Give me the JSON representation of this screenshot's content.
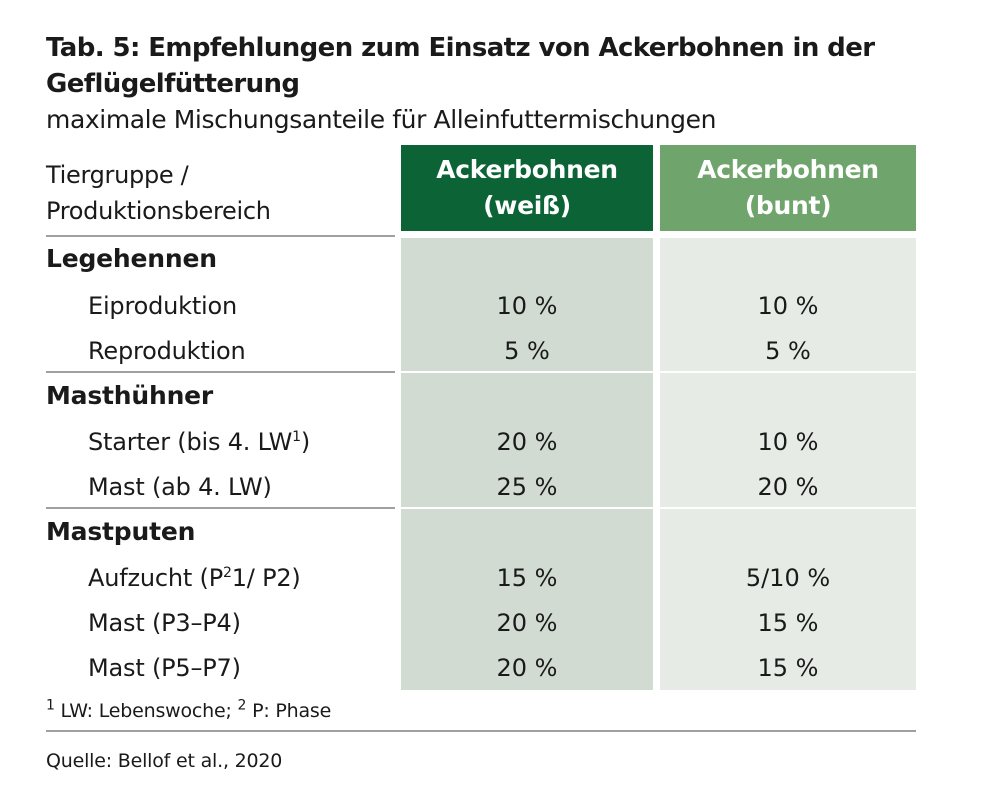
{
  "title": "Tab. 5: Empfehlungen zum Einsatz von Ackerbohnen in der Geflügelfütterung",
  "subtitle": "maximale Mischungsanteile für Alleinfuttermischungen",
  "header": {
    "row_label_line1": "Tiergruppe /",
    "row_label_line2": "Produktionsbereich",
    "col1_line1": "Ackerbohnen",
    "col1_line2": "(weiß)",
    "col2_line1": "Ackerbohnen",
    "col2_line2": "(bunt)"
  },
  "colors": {
    "dark_green": "#0b6336",
    "light_green": "#6fa56c",
    "cell_dark": "#d2dbd2",
    "cell_light": "#e6ebe6"
  },
  "groups": [
    {
      "name": "Legehennen",
      "rows": [
        {
          "label": "Eiproduktion",
          "weiss": "10 %",
          "bunt": "10 %"
        },
        {
          "label": "Reproduktion",
          "weiss": "5 %",
          "bunt": "5 %"
        }
      ]
    },
    {
      "name": "Masthühner",
      "rows": [
        {
          "label": "Starter (bis 4. LW",
          "sup": "1",
          "label_end": ")",
          "weiss": "20 %",
          "bunt": "10 %"
        },
        {
          "label": "Mast (ab 4. LW)",
          "weiss": "25 %",
          "bunt": "20 %"
        }
      ]
    },
    {
      "name": "Mastputen",
      "rows": [
        {
          "label": "Aufzucht (P",
          "sup": "2",
          "label_end": "1/ P2)",
          "weiss": "15 %",
          "bunt": "5/10 %"
        },
        {
          "label": "Mast (P3–P4)",
          "weiss": "20 %",
          "bunt": "15 %"
        },
        {
          "label": "Mast (P5–P7)",
          "weiss": "20 %",
          "bunt": "15 %"
        }
      ]
    }
  ],
  "footnote": {
    "sup1": "1",
    "text1": " LW: Lebenswoche; ",
    "sup2": "2",
    "text2": " P: Phase"
  },
  "source": "Quelle: Bellof et al., 2020"
}
